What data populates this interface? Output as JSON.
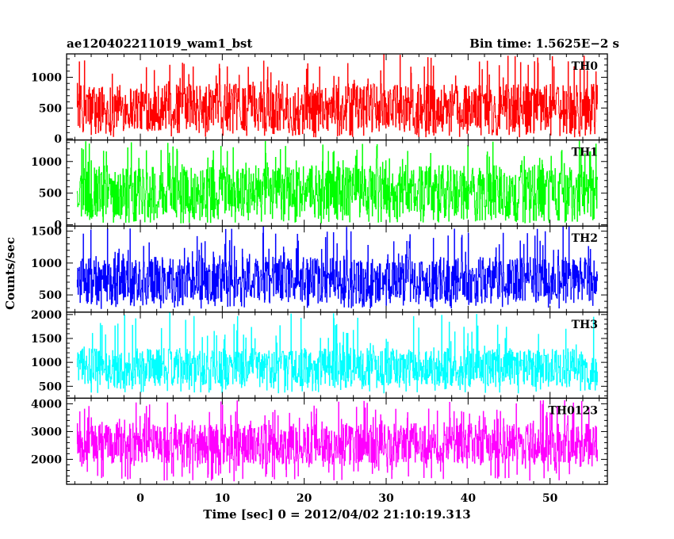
{
  "header": {
    "title": "ae120402211019_wam1_bst",
    "bin_time": "Bin time: 1.5625E−2 s"
  },
  "chart_data": {
    "type": "line",
    "title": "ae120402211019_wam1_bst",
    "subtitle": "Bin time: 1.5625E−2 s",
    "xlabel": "Time [sec] 0 = 2012/04/02 21:10:19.313",
    "ylabel": "Counts/sec",
    "xlim": [
      -9,
      57
    ],
    "x_data_range": [
      -7.7,
      55.8
    ],
    "x_ticks": [
      0,
      10,
      20,
      30,
      40,
      50
    ],
    "x_tick_labels": [
      "0",
      "10",
      "20",
      "30",
      "40",
      "50"
    ],
    "grid": false,
    "panels": [
      {
        "name": "TH0",
        "color": "#ff0000",
        "ylim": [
          -20,
          1380
        ],
        "y_ticks": [
          0,
          500,
          1000
        ],
        "y_tick_labels": [
          "0",
          "500",
          "1000"
        ],
        "typical_low": 120,
        "typical_high": 900,
        "min": 20,
        "max": 1380
      },
      {
        "name": "TH1",
        "color": "#00ff00",
        "ylim": [
          -20,
          1340
        ],
        "y_ticks": [
          0,
          500,
          1000
        ],
        "y_tick_labels": [
          "0",
          "500",
          "1000"
        ],
        "typical_low": 120,
        "typical_high": 950,
        "min": 20,
        "max": 1340
      },
      {
        "name": "TH2",
        "color": "#0000ff",
        "ylim": [
          230,
          1580
        ],
        "y_ticks": [
          500,
          1000,
          1500
        ],
        "y_tick_labels": [
          "500",
          "1000",
          "1500"
        ],
        "typical_low": 380,
        "typical_high": 1100,
        "min": 280,
        "max": 1580
      },
      {
        "name": "TH3",
        "color": "#00ffff",
        "ylim": [
          250,
          2050
        ],
        "y_ticks": [
          500,
          1000,
          1500,
          2000
        ],
        "y_tick_labels": [
          "500",
          "1000",
          "1500",
          "2000"
        ],
        "typical_low": 500,
        "typical_high": 1300,
        "min": 350,
        "max": 2050
      },
      {
        "name": "TH0123",
        "color": "#ff00ff",
        "ylim": [
          1100,
          4200
        ],
        "y_ticks": [
          2000,
          3000,
          4000
        ],
        "y_tick_labels": [
          "2000",
          "3000",
          "4000"
        ],
        "typical_low": 1800,
        "typical_high": 3300,
        "min": 1200,
        "max": 4150
      }
    ]
  }
}
